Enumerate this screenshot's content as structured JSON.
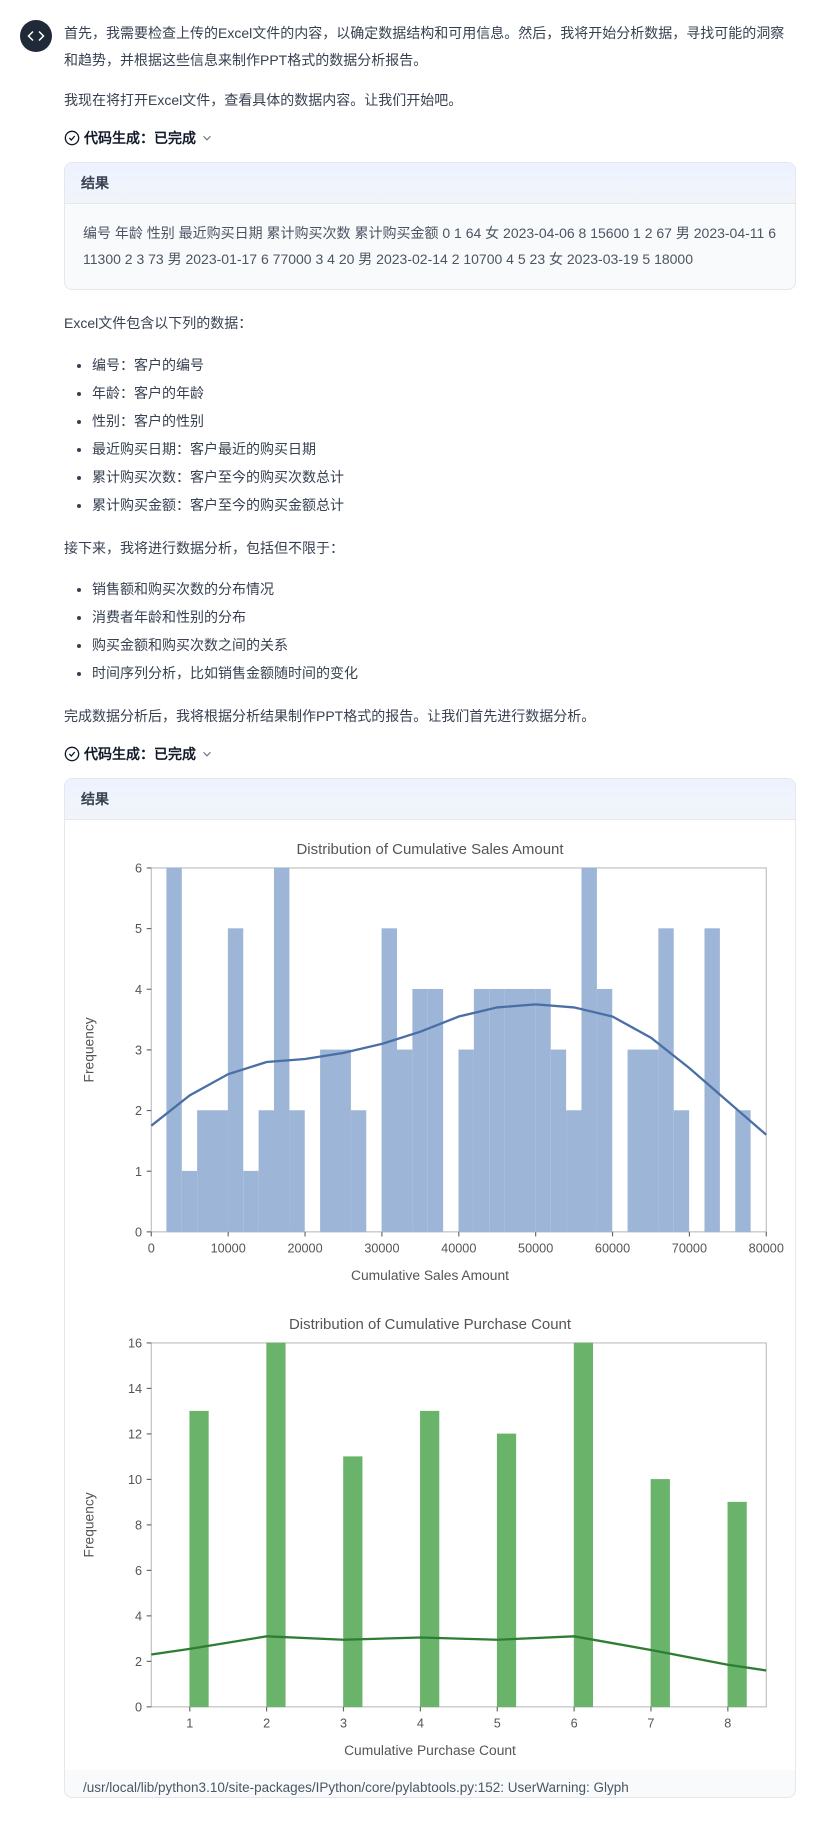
{
  "avatar": {
    "icon": "code"
  },
  "paragraphs": {
    "p1": "首先，我需要检查上传的Excel文件的内容，以确定数据结构和可用信息。然后，我将开始分析数据，寻找可能的洞察和趋势，并根据这些信息来制作PPT格式的数据分析报告。",
    "p2": "我现在将打开Excel文件，查看具体的数据内容。让我们开始吧。",
    "p3": "Excel文件包含以下列的数据：",
    "p4": "接下来，我将进行数据分析，包括但不限于：",
    "p5": "完成数据分析后，我将根据分析结果制作PPT格式的报告。让我们首先进行数据分析。"
  },
  "codegen": {
    "label": "代码生成：已完成"
  },
  "result": {
    "header": "结果",
    "body1": "编号 年龄 性别 最近购买日期 累计购买次数 累计购买金额 0 1 64 女 2023-04-06 8 15600 1 2 67 男 2023-04-11 6 11300 2 3 73 男 2023-01-17 6 77000 3 4 20 男 2023-02-14 2 10700 4 5 23 女 2023-03-19 5 18000"
  },
  "list1": {
    "i0": "编号：客户的编号",
    "i1": "年龄：客户的年龄",
    "i2": "性别：客户的性别",
    "i3": "最近购买日期：客户最近的购买日期",
    "i4": "累计购买次数：客户至今的购买次数总计",
    "i5": "累计购买金额：客户至今的购买金额总计"
  },
  "list2": {
    "i0": "销售额和购买次数的分布情况",
    "i1": "消费者年龄和性别的分布",
    "i2": "购买金额和购买次数之间的关系",
    "i3": "时间序列分析，比如销售金额随时间的变化"
  },
  "chart1": {
    "type": "histogram+kde",
    "title": "Distribution of Cumulative Sales Amount",
    "xlabel": "Cumulative Sales Amount",
    "ylabel": "Frequency",
    "bar_color": "#9db5d6",
    "bar_edge": "#9db5d6",
    "kde_color": "#4a6fa5",
    "background": "#ffffff",
    "plot_border": "#bfbfbf",
    "tick_color": "#666666",
    "label_fontsize": 11,
    "title_fontsize": 13,
    "xlim": [
      0,
      80000
    ],
    "ylim": [
      0,
      6
    ],
    "xtick_step": 10000,
    "ytick_step": 1,
    "bin_width": 2000,
    "bars": [
      [
        2000,
        6
      ],
      [
        4000,
        1
      ],
      [
        6000,
        2
      ],
      [
        8000,
        2
      ],
      [
        10000,
        5
      ],
      [
        12000,
        1
      ],
      [
        14000,
        2
      ],
      [
        16000,
        6
      ],
      [
        18000,
        2
      ],
      [
        20000,
        0
      ],
      [
        22000,
        3
      ],
      [
        24000,
        3
      ],
      [
        26000,
        2
      ],
      [
        28000,
        0
      ],
      [
        30000,
        5
      ],
      [
        32000,
        3
      ],
      [
        34000,
        4
      ],
      [
        36000,
        4
      ],
      [
        38000,
        0
      ],
      [
        40000,
        3
      ],
      [
        42000,
        4
      ],
      [
        44000,
        4
      ],
      [
        46000,
        4
      ],
      [
        48000,
        4
      ],
      [
        50000,
        4
      ],
      [
        52000,
        3
      ],
      [
        54000,
        2
      ],
      [
        56000,
        6
      ],
      [
        58000,
        4
      ],
      [
        60000,
        0
      ],
      [
        62000,
        3
      ],
      [
        64000,
        3
      ],
      [
        66000,
        5
      ],
      [
        68000,
        2
      ],
      [
        70000,
        0
      ],
      [
        72000,
        5
      ],
      [
        74000,
        0
      ],
      [
        76000,
        2
      ],
      [
        78000,
        0
      ]
    ],
    "kde_points": [
      [
        0,
        1.75
      ],
      [
        5000,
        2.25
      ],
      [
        10000,
        2.6
      ],
      [
        15000,
        2.8
      ],
      [
        20000,
        2.85
      ],
      [
        25000,
        2.95
      ],
      [
        30000,
        3.1
      ],
      [
        35000,
        3.3
      ],
      [
        40000,
        3.55
      ],
      [
        45000,
        3.7
      ],
      [
        50000,
        3.75
      ],
      [
        55000,
        3.7
      ],
      [
        60000,
        3.55
      ],
      [
        65000,
        3.2
      ],
      [
        70000,
        2.7
      ],
      [
        75000,
        2.15
      ],
      [
        80000,
        1.6
      ]
    ]
  },
  "chart2": {
    "type": "histogram+kde",
    "title": "Distribution of Cumulative Purchase Count",
    "xlabel": "Cumulative Purchase Count",
    "ylabel": "Frequency",
    "bar_color": "#6ab36a",
    "bar_edge": "#6ab36a",
    "kde_color": "#2e7d32",
    "background": "#ffffff",
    "plot_border": "#bfbfbf",
    "tick_color": "#666666",
    "label_fontsize": 11,
    "title_fontsize": 13,
    "xlim": [
      0.5,
      8.5
    ],
    "ylim": [
      0,
      16
    ],
    "xticks": [
      1,
      2,
      3,
      4,
      5,
      6,
      7,
      8
    ],
    "ytick_step": 2,
    "bar_width": 0.25,
    "bars": [
      [
        1,
        13
      ],
      [
        2,
        16
      ],
      [
        3,
        11
      ],
      [
        4,
        13
      ],
      [
        5,
        12
      ],
      [
        6,
        16
      ],
      [
        7,
        10
      ],
      [
        8,
        9
      ]
    ],
    "kde_points": [
      [
        0.5,
        2.3
      ],
      [
        1,
        2.55
      ],
      [
        2,
        3.1
      ],
      [
        3,
        2.95
      ],
      [
        4,
        3.05
      ],
      [
        5,
        2.95
      ],
      [
        6,
        3.1
      ],
      [
        7,
        2.5
      ],
      [
        8,
        1.85
      ],
      [
        8.5,
        1.6
      ]
    ]
  },
  "warning": "/usr/local/lib/python3.10/site-packages/IPython/core/pylabtools.py:152: UserWarning: Glyph"
}
